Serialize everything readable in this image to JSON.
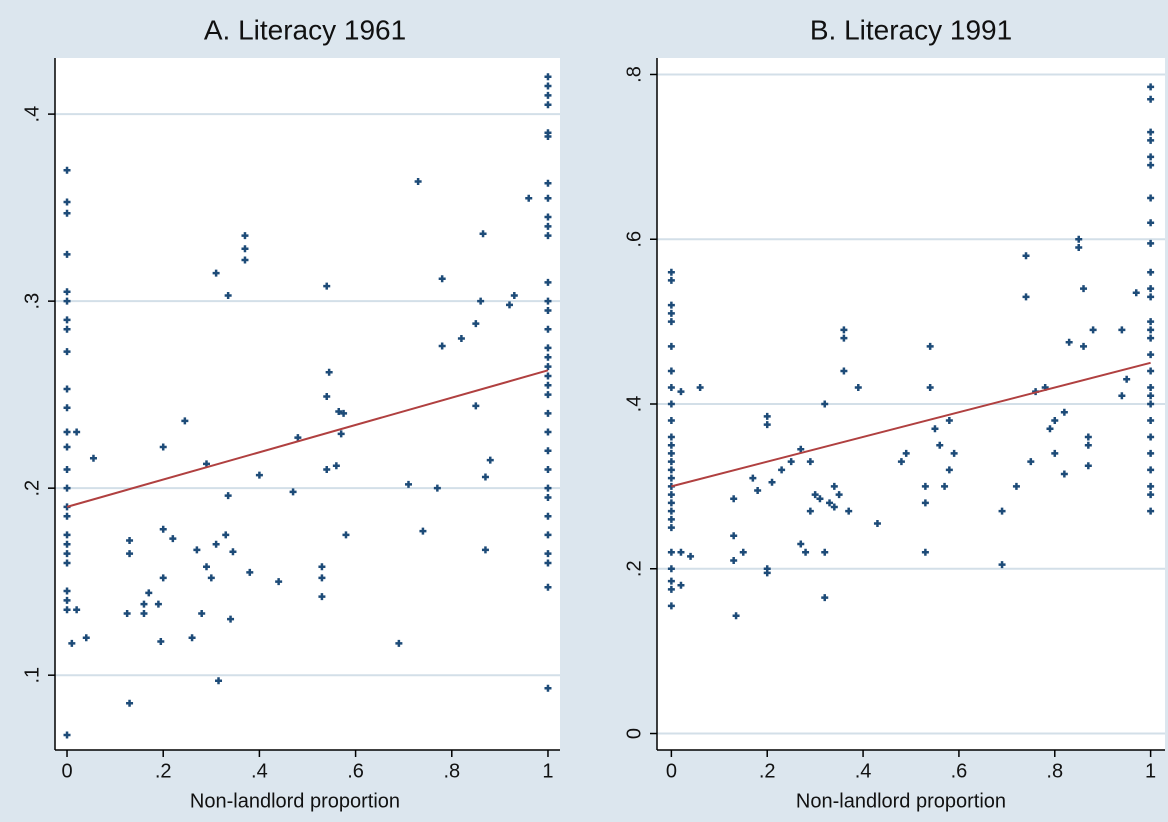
{
  "chart_data": [
    {
      "type": "scatter",
      "title": "A. Literacy 1961",
      "x_label": "Non-landlord proportion",
      "xlim": [
        -0.025,
        1.025
      ],
      "ylim": [
        0.06,
        0.43
      ],
      "xticks": [
        0,
        {
          "value": 0.2,
          "label": ".2"
        },
        {
          "value": 0.4,
          "label": ".4"
        },
        {
          "value": 0.6,
          "label": ".6"
        },
        {
          "value": 0.8,
          "label": ".8"
        },
        1
      ],
      "yticks": [
        {
          "value": 0.1,
          "label": ".1"
        },
        {
          "value": 0.2,
          "label": ".2"
        },
        {
          "value": 0.3,
          "label": ".3"
        },
        {
          "value": 0.4,
          "label": ".4"
        }
      ],
      "grid": true,
      "color": "#1d4b78",
      "x": [
        0,
        0,
        0,
        0,
        0,
        0,
        0,
        0,
        0,
        0,
        0,
        0,
        0,
        0,
        0,
        0,
        0,
        0,
        0,
        0,
        0,
        0,
        0,
        0,
        0,
        0.01,
        0.02,
        0.02,
        0.04,
        0.055,
        0.13,
        0.13,
        0.125,
        0.13,
        0.16,
        0.16,
        0.17,
        0.19,
        0.195,
        0.2,
        0.2,
        0.2,
        0.22,
        0.245,
        0.26,
        0.27,
        0.28,
        0.29,
        0.29,
        0.3,
        0.31,
        0.31,
        0.315,
        0.33,
        0.335,
        0.335,
        0.34,
        0.345,
        0.37,
        0.37,
        0.37,
        0.38,
        0.4,
        0.44,
        0.47,
        0.48,
        0.53,
        0.53,
        0.53,
        0.54,
        0.54,
        0.545,
        0.54,
        0.56,
        0.565,
        0.57,
        0.575,
        0.58,
        0.69,
        0.71,
        0.73,
        0.74,
        0.77,
        0.78,
        0.78,
        0.82,
        0.85,
        0.85,
        0.86,
        0.865,
        0.87,
        0.87,
        0.88,
        0.92,
        0.93,
        0.96,
        1,
        1,
        1,
        1,
        1,
        1,
        1,
        1,
        1,
        1,
        1,
        1,
        1,
        1,
        1,
        1,
        1,
        1,
        1,
        1,
        1,
        1,
        1,
        1,
        1,
        1,
        1,
        1,
        1,
        1,
        1,
        1,
        1
      ],
      "values": [
        0.37,
        0.353,
        0.347,
        0.325,
        0.305,
        0.3,
        0.29,
        0.285,
        0.273,
        0.253,
        0.243,
        0.23,
        0.222,
        0.21,
        0.2,
        0.19,
        0.185,
        0.175,
        0.17,
        0.165,
        0.16,
        0.145,
        0.14,
        0.135,
        0.068,
        0.117,
        0.23,
        0.135,
        0.12,
        0.216,
        0.172,
        0.165,
        0.133,
        0.085,
        0.133,
        0.138,
        0.144,
        0.138,
        0.118,
        0.222,
        0.152,
        0.178,
        0.173,
        0.236,
        0.12,
        0.167,
        0.133,
        0.213,
        0.158,
        0.152,
        0.315,
        0.17,
        0.097,
        0.175,
        0.303,
        0.196,
        0.13,
        0.166,
        0.335,
        0.328,
        0.322,
        0.155,
        0.207,
        0.15,
        0.198,
        0.227,
        0.158,
        0.152,
        0.142,
        0.308,
        0.249,
        0.262,
        0.21,
        0.212,
        0.241,
        0.229,
        0.24,
        0.175,
        0.117,
        0.202,
        0.364,
        0.177,
        0.2,
        0.312,
        0.276,
        0.28,
        0.288,
        0.244,
        0.3,
        0.336,
        0.206,
        0.167,
        0.215,
        0.298,
        0.303,
        0.355,
        0.42,
        0.415,
        0.41,
        0.405,
        0.39,
        0.388,
        0.363,
        0.355,
        0.345,
        0.34,
        0.335,
        0.31,
        0.3,
        0.295,
        0.285,
        0.275,
        0.27,
        0.265,
        0.26,
        0.255,
        0.25,
        0.24,
        0.23,
        0.22,
        0.21,
        0.2,
        0.195,
        0.185,
        0.175,
        0.165,
        0.16,
        0.147,
        0.093
      ],
      "fit": {
        "x": [
          0,
          1
        ],
        "values": [
          0.19,
          0.263
        ],
        "color": "#b04040"
      }
    },
    {
      "type": "scatter",
      "title": "B. Literacy 1991",
      "x_label": "Non-landlord proportion",
      "xlim": [
        -0.03,
        1.03
      ],
      "ylim": [
        -0.02,
        0.82
      ],
      "xticks": [
        0,
        {
          "value": 0.2,
          "label": ".2"
        },
        {
          "value": 0.4,
          "label": ".4"
        },
        {
          "value": 0.6,
          "label": ".6"
        },
        {
          "value": 0.8,
          "label": ".8"
        },
        1
      ],
      "yticks": [
        0,
        {
          "value": 0.2,
          "label": ".2"
        },
        {
          "value": 0.4,
          "label": ".4"
        },
        {
          "value": 0.6,
          "label": ".6"
        },
        {
          "value": 0.8,
          "label": ".8"
        }
      ],
      "grid": true,
      "color": "#1d4b78",
      "x": [
        0,
        0,
        0,
        0,
        0,
        0,
        0,
        0,
        0,
        0,
        0,
        0,
        0,
        0,
        0,
        0,
        0,
        0,
        0,
        0,
        0,
        0,
        0,
        0,
        0,
        0,
        0,
        0.02,
        0.02,
        0.02,
        0.04,
        0.06,
        0.13,
        0.13,
        0.13,
        0.135,
        0.15,
        0.17,
        0.18,
        0.2,
        0.2,
        0.2,
        0.2,
        0.21,
        0.23,
        0.25,
        0.27,
        0.27,
        0.28,
        0.29,
        0.29,
        0.3,
        0.31,
        0.32,
        0.32,
        0.32,
        0.33,
        0.34,
        0.34,
        0.35,
        0.36,
        0.36,
        0.36,
        0.37,
        0.39,
        0.43,
        0.48,
        0.49,
        0.53,
        0.53,
        0.53,
        0.54,
        0.54,
        0.55,
        0.56,
        0.57,
        0.58,
        0.58,
        0.59,
        0.69,
        0.69,
        0.72,
        0.74,
        0.74,
        0.75,
        0.76,
        0.78,
        0.79,
        0.8,
        0.8,
        0.82,
        0.82,
        0.83,
        0.85,
        0.85,
        0.86,
        0.86,
        0.87,
        0.87,
        0.87,
        0.88,
        0.94,
        0.94,
        0.95,
        0.97,
        1,
        1,
        1,
        1,
        1,
        1,
        1,
        1,
        1,
        1,
        1,
        1,
        1,
        1,
        1,
        1,
        1,
        1,
        1,
        1,
        1,
        1,
        1,
        1,
        1,
        1,
        1
      ],
      "values": [
        0.56,
        0.55,
        0.52,
        0.51,
        0.5,
        0.47,
        0.44,
        0.42,
        0.4,
        0.38,
        0.36,
        0.35,
        0.34,
        0.33,
        0.32,
        0.31,
        0.3,
        0.29,
        0.28,
        0.27,
        0.26,
        0.25,
        0.22,
        0.2,
        0.185,
        0.175,
        0.155,
        0.415,
        0.18,
        0.22,
        0.215,
        0.42,
        0.285,
        0.24,
        0.21,
        0.143,
        0.22,
        0.31,
        0.295,
        0.385,
        0.375,
        0.2,
        0.195,
        0.305,
        0.32,
        0.33,
        0.345,
        0.23,
        0.22,
        0.27,
        0.33,
        0.29,
        0.285,
        0.4,
        0.22,
        0.165,
        0.28,
        0.3,
        0.275,
        0.29,
        0.49,
        0.48,
        0.44,
        0.27,
        0.42,
        0.255,
        0.33,
        0.34,
        0.3,
        0.28,
        0.22,
        0.47,
        0.42,
        0.37,
        0.35,
        0.3,
        0.32,
        0.38,
        0.34,
        0.27,
        0.205,
        0.3,
        0.58,
        0.53,
        0.33,
        0.415,
        0.42,
        0.37,
        0.34,
        0.38,
        0.39,
        0.315,
        0.475,
        0.6,
        0.59,
        0.47,
        0.54,
        0.36,
        0.35,
        0.325,
        0.49,
        0.41,
        0.49,
        0.43,
        0.535,
        0.785,
        0.77,
        0.73,
        0.72,
        0.7,
        0.69,
        0.65,
        0.62,
        0.595,
        0.56,
        0.54,
        0.53,
        0.5,
        0.49,
        0.48,
        0.46,
        0.44,
        0.42,
        0.41,
        0.4,
        0.38,
        0.36,
        0.34,
        0.32,
        0.3,
        0.29,
        0.27
      ],
      "fit": {
        "x": [
          0,
          1
        ],
        "values": [
          0.3,
          0.45
        ],
        "color": "#b04040"
      }
    }
  ]
}
